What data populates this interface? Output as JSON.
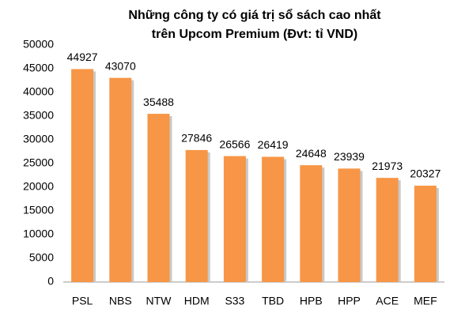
{
  "chart_data": {
    "type": "bar",
    "title": [
      "Những công ty có giá trị sổ sách cao nhất",
      "trên Upcom Premium (Đvt: tỉ VND)"
    ],
    "categories": [
      "PSL",
      "NBS",
      "NTW",
      "HDM",
      "S33",
      "TBD",
      "HPB",
      "HPP",
      "ACE",
      "MEF"
    ],
    "values": [
      44927,
      43070,
      35488,
      27846,
      26566,
      26419,
      24648,
      23939,
      21973,
      20327
    ],
    "color": "#f79646",
    "ylim": [
      0,
      50000
    ],
    "yticks": [
      0,
      5000,
      10000,
      15000,
      20000,
      25000,
      30000,
      35000,
      40000,
      45000,
      50000
    ]
  }
}
